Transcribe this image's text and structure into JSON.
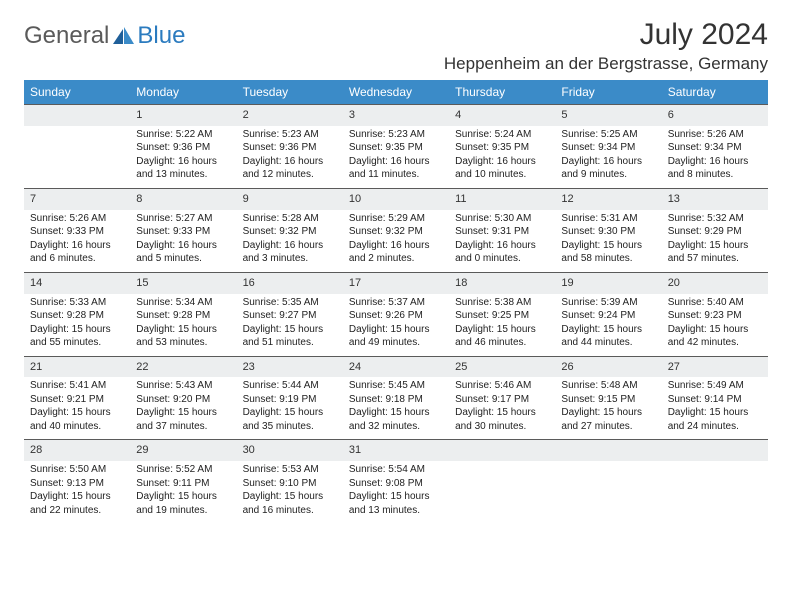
{
  "logo": {
    "text1": "General",
    "text2": "Blue"
  },
  "title": "July 2024",
  "location": "Heppenheim an der Bergstrasse, Germany",
  "colors": {
    "header_bg": "#3b8bc8",
    "header_fg": "#ffffff",
    "daynum_bg": "#eceeef",
    "logo_gray": "#5a5a5a",
    "logo_blue": "#2b7bbf"
  },
  "weekdays": [
    "Sunday",
    "Monday",
    "Tuesday",
    "Wednesday",
    "Thursday",
    "Friday",
    "Saturday"
  ],
  "weeks": [
    [
      {
        "n": "",
        "l1": "",
        "l2": "",
        "l3": "",
        "l4": ""
      },
      {
        "n": "1",
        "l1": "Sunrise: 5:22 AM",
        "l2": "Sunset: 9:36 PM",
        "l3": "Daylight: 16 hours",
        "l4": "and 13 minutes."
      },
      {
        "n": "2",
        "l1": "Sunrise: 5:23 AM",
        "l2": "Sunset: 9:36 PM",
        "l3": "Daylight: 16 hours",
        "l4": "and 12 minutes."
      },
      {
        "n": "3",
        "l1": "Sunrise: 5:23 AM",
        "l2": "Sunset: 9:35 PM",
        "l3": "Daylight: 16 hours",
        "l4": "and 11 minutes."
      },
      {
        "n": "4",
        "l1": "Sunrise: 5:24 AM",
        "l2": "Sunset: 9:35 PM",
        "l3": "Daylight: 16 hours",
        "l4": "and 10 minutes."
      },
      {
        "n": "5",
        "l1": "Sunrise: 5:25 AM",
        "l2": "Sunset: 9:34 PM",
        "l3": "Daylight: 16 hours",
        "l4": "and 9 minutes."
      },
      {
        "n": "6",
        "l1": "Sunrise: 5:26 AM",
        "l2": "Sunset: 9:34 PM",
        "l3": "Daylight: 16 hours",
        "l4": "and 8 minutes."
      }
    ],
    [
      {
        "n": "7",
        "l1": "Sunrise: 5:26 AM",
        "l2": "Sunset: 9:33 PM",
        "l3": "Daylight: 16 hours",
        "l4": "and 6 minutes."
      },
      {
        "n": "8",
        "l1": "Sunrise: 5:27 AM",
        "l2": "Sunset: 9:33 PM",
        "l3": "Daylight: 16 hours",
        "l4": "and 5 minutes."
      },
      {
        "n": "9",
        "l1": "Sunrise: 5:28 AM",
        "l2": "Sunset: 9:32 PM",
        "l3": "Daylight: 16 hours",
        "l4": "and 3 minutes."
      },
      {
        "n": "10",
        "l1": "Sunrise: 5:29 AM",
        "l2": "Sunset: 9:32 PM",
        "l3": "Daylight: 16 hours",
        "l4": "and 2 minutes."
      },
      {
        "n": "11",
        "l1": "Sunrise: 5:30 AM",
        "l2": "Sunset: 9:31 PM",
        "l3": "Daylight: 16 hours",
        "l4": "and 0 minutes."
      },
      {
        "n": "12",
        "l1": "Sunrise: 5:31 AM",
        "l2": "Sunset: 9:30 PM",
        "l3": "Daylight: 15 hours",
        "l4": "and 58 minutes."
      },
      {
        "n": "13",
        "l1": "Sunrise: 5:32 AM",
        "l2": "Sunset: 9:29 PM",
        "l3": "Daylight: 15 hours",
        "l4": "and 57 minutes."
      }
    ],
    [
      {
        "n": "14",
        "l1": "Sunrise: 5:33 AM",
        "l2": "Sunset: 9:28 PM",
        "l3": "Daylight: 15 hours",
        "l4": "and 55 minutes."
      },
      {
        "n": "15",
        "l1": "Sunrise: 5:34 AM",
        "l2": "Sunset: 9:28 PM",
        "l3": "Daylight: 15 hours",
        "l4": "and 53 minutes."
      },
      {
        "n": "16",
        "l1": "Sunrise: 5:35 AM",
        "l2": "Sunset: 9:27 PM",
        "l3": "Daylight: 15 hours",
        "l4": "and 51 minutes."
      },
      {
        "n": "17",
        "l1": "Sunrise: 5:37 AM",
        "l2": "Sunset: 9:26 PM",
        "l3": "Daylight: 15 hours",
        "l4": "and 49 minutes."
      },
      {
        "n": "18",
        "l1": "Sunrise: 5:38 AM",
        "l2": "Sunset: 9:25 PM",
        "l3": "Daylight: 15 hours",
        "l4": "and 46 minutes."
      },
      {
        "n": "19",
        "l1": "Sunrise: 5:39 AM",
        "l2": "Sunset: 9:24 PM",
        "l3": "Daylight: 15 hours",
        "l4": "and 44 minutes."
      },
      {
        "n": "20",
        "l1": "Sunrise: 5:40 AM",
        "l2": "Sunset: 9:23 PM",
        "l3": "Daylight: 15 hours",
        "l4": "and 42 minutes."
      }
    ],
    [
      {
        "n": "21",
        "l1": "Sunrise: 5:41 AM",
        "l2": "Sunset: 9:21 PM",
        "l3": "Daylight: 15 hours",
        "l4": "and 40 minutes."
      },
      {
        "n": "22",
        "l1": "Sunrise: 5:43 AM",
        "l2": "Sunset: 9:20 PM",
        "l3": "Daylight: 15 hours",
        "l4": "and 37 minutes."
      },
      {
        "n": "23",
        "l1": "Sunrise: 5:44 AM",
        "l2": "Sunset: 9:19 PM",
        "l3": "Daylight: 15 hours",
        "l4": "and 35 minutes."
      },
      {
        "n": "24",
        "l1": "Sunrise: 5:45 AM",
        "l2": "Sunset: 9:18 PM",
        "l3": "Daylight: 15 hours",
        "l4": "and 32 minutes."
      },
      {
        "n": "25",
        "l1": "Sunrise: 5:46 AM",
        "l2": "Sunset: 9:17 PM",
        "l3": "Daylight: 15 hours",
        "l4": "and 30 minutes."
      },
      {
        "n": "26",
        "l1": "Sunrise: 5:48 AM",
        "l2": "Sunset: 9:15 PM",
        "l3": "Daylight: 15 hours",
        "l4": "and 27 minutes."
      },
      {
        "n": "27",
        "l1": "Sunrise: 5:49 AM",
        "l2": "Sunset: 9:14 PM",
        "l3": "Daylight: 15 hours",
        "l4": "and 24 minutes."
      }
    ],
    [
      {
        "n": "28",
        "l1": "Sunrise: 5:50 AM",
        "l2": "Sunset: 9:13 PM",
        "l3": "Daylight: 15 hours",
        "l4": "and 22 minutes."
      },
      {
        "n": "29",
        "l1": "Sunrise: 5:52 AM",
        "l2": "Sunset: 9:11 PM",
        "l3": "Daylight: 15 hours",
        "l4": "and 19 minutes."
      },
      {
        "n": "30",
        "l1": "Sunrise: 5:53 AM",
        "l2": "Sunset: 9:10 PM",
        "l3": "Daylight: 15 hours",
        "l4": "and 16 minutes."
      },
      {
        "n": "31",
        "l1": "Sunrise: 5:54 AM",
        "l2": "Sunset: 9:08 PM",
        "l3": "Daylight: 15 hours",
        "l4": "and 13 minutes."
      },
      {
        "n": "",
        "l1": "",
        "l2": "",
        "l3": "",
        "l4": ""
      },
      {
        "n": "",
        "l1": "",
        "l2": "",
        "l3": "",
        "l4": ""
      },
      {
        "n": "",
        "l1": "",
        "l2": "",
        "l3": "",
        "l4": ""
      }
    ]
  ]
}
